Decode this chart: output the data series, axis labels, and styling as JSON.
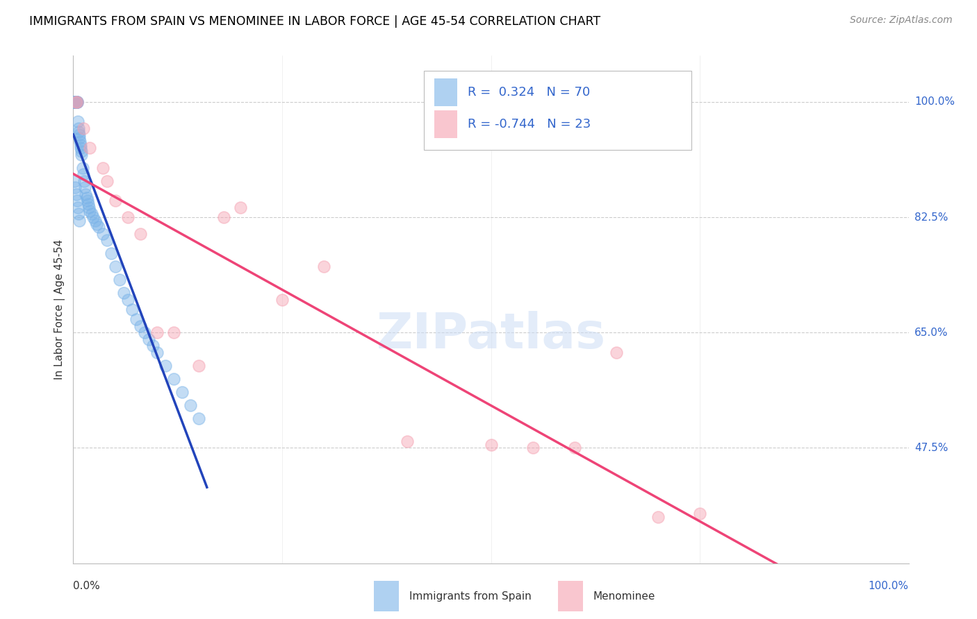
{
  "title": "IMMIGRANTS FROM SPAIN VS MENOMINEE IN LABOR FORCE | AGE 45-54 CORRELATION CHART",
  "source": "Source: ZipAtlas.com",
  "ylabel": "In Labor Force | Age 45-54",
  "yticks": [
    47.5,
    65.0,
    82.5,
    100.0
  ],
  "ytick_labels": [
    "47.5%",
    "65.0%",
    "82.5%",
    "100.0%"
  ],
  "xtick_left": "0.0%",
  "xtick_right": "100.0%",
  "xlim": [
    0.0,
    100.0
  ],
  "ylim": [
    30.0,
    107.0
  ],
  "blue_R": 0.324,
  "blue_N": 70,
  "pink_R": -0.744,
  "pink_N": 23,
  "blue_color": "#7ab3e8",
  "pink_color": "#f5a0b0",
  "blue_line_color": "#2244bb",
  "pink_line_color": "#ee4477",
  "legend_label1": "Immigrants from Spain",
  "legend_label2": "Menominee",
  "blue_x": [
    0.05,
    0.08,
    0.1,
    0.12,
    0.15,
    0.18,
    0.2,
    0.22,
    0.25,
    0.28,
    0.3,
    0.32,
    0.35,
    0.38,
    0.4,
    0.42,
    0.45,
    0.48,
    0.5,
    0.55,
    0.6,
    0.65,
    0.7,
    0.75,
    0.8,
    0.85,
    0.9,
    0.95,
    1.0,
    1.1,
    1.2,
    1.3,
    1.4,
    1.5,
    1.6,
    1.7,
    1.8,
    1.9,
    2.0,
    2.2,
    2.4,
    2.6,
    2.8,
    3.0,
    3.5,
    4.0,
    4.5,
    5.0,
    5.5,
    6.0,
    6.5,
    7.0,
    7.5,
    8.0,
    8.5,
    9.0,
    9.5,
    10.0,
    11.0,
    12.0,
    13.0,
    14.0,
    15.0,
    0.15,
    0.25,
    0.35,
    0.45,
    0.55,
    0.65,
    0.75
  ],
  "blue_y": [
    100.0,
    100.0,
    100.0,
    100.0,
    100.0,
    100.0,
    100.0,
    100.0,
    100.0,
    100.0,
    100.0,
    100.0,
    100.0,
    100.0,
    100.0,
    100.0,
    100.0,
    100.0,
    100.0,
    97.0,
    96.0,
    95.5,
    95.0,
    94.5,
    94.0,
    93.5,
    93.0,
    92.5,
    92.0,
    90.0,
    89.0,
    88.0,
    87.0,
    86.0,
    85.5,
    85.0,
    84.5,
    84.0,
    83.5,
    83.0,
    82.5,
    82.0,
    81.5,
    81.0,
    80.0,
    79.0,
    77.0,
    75.0,
    73.0,
    71.0,
    70.0,
    68.5,
    67.0,
    66.0,
    65.0,
    64.0,
    63.0,
    62.0,
    60.0,
    58.0,
    56.0,
    54.0,
    52.0,
    88.0,
    87.0,
    86.0,
    85.0,
    84.0,
    83.0,
    82.0
  ],
  "pink_x": [
    0.3,
    0.5,
    1.2,
    2.0,
    3.5,
    5.0,
    6.5,
    8.0,
    12.0,
    18.0,
    25.0,
    30.0,
    40.0,
    50.0,
    55.0,
    60.0,
    65.0,
    70.0,
    75.0,
    4.0,
    10.0,
    15.0,
    20.0
  ],
  "pink_y": [
    100.0,
    100.0,
    96.0,
    93.0,
    90.0,
    85.0,
    82.5,
    80.0,
    65.0,
    82.5,
    70.0,
    75.0,
    48.5,
    48.0,
    47.5,
    47.5,
    62.0,
    37.0,
    37.5,
    88.0,
    65.0,
    60.0,
    84.0
  ]
}
